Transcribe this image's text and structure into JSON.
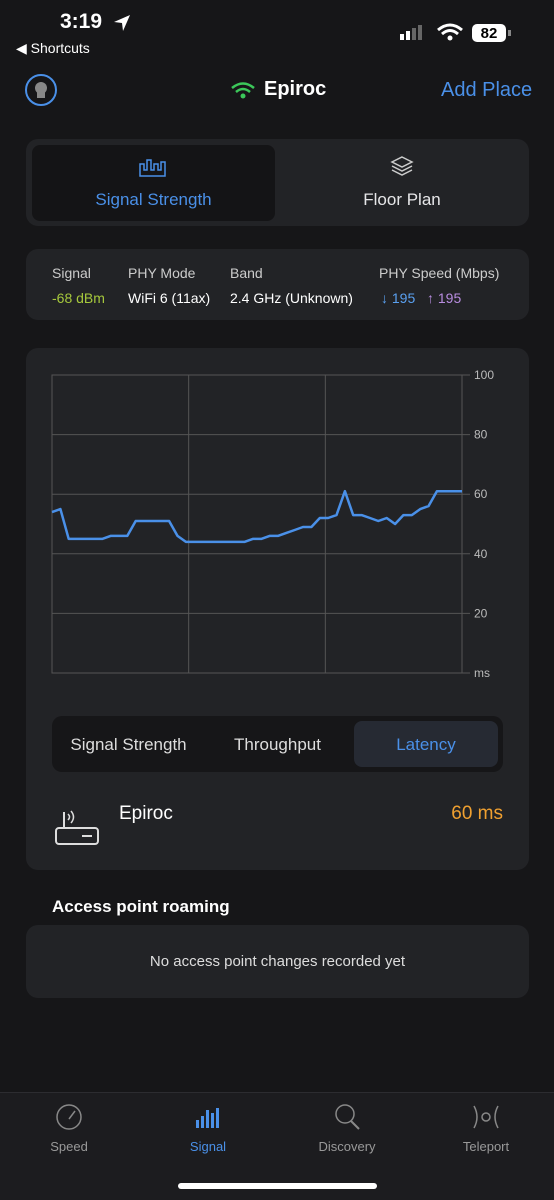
{
  "status_bar": {
    "time": "3:19",
    "back": "Shortcuts",
    "battery": "82"
  },
  "header": {
    "title": "Epiroc",
    "action": "Add Place"
  },
  "tabs": [
    "Signal Strength",
    "Floor Plan"
  ],
  "info": [
    {
      "label": "Signal",
      "value": "-68 dBm"
    },
    {
      "label": "PHY Mode",
      "value": "WiFi 6 (11ax)"
    },
    {
      "label": "Band",
      "value": "2.4 GHz (Unknown)"
    },
    {
      "label": "PHY Speed (Mbps)",
      "down": "↓ 195",
      "up": "↑ 195"
    }
  ],
  "chart_data": {
    "type": "line",
    "color": "#4a90e8",
    "ylim": [
      0,
      100
    ],
    "yticks": [
      100,
      80,
      60,
      40,
      20,
      {
        "value": 0,
        "label": "ms"
      }
    ],
    "grid": true,
    "values": [
      54,
      55,
      45,
      45,
      45,
      45,
      45,
      46,
      46,
      46,
      51,
      51,
      51,
      51,
      51,
      46,
      44,
      44,
      44,
      44,
      44,
      44,
      44,
      44,
      45,
      45,
      46,
      46,
      47,
      48,
      49,
      49,
      52,
      52,
      53,
      61,
      53,
      53,
      52,
      51,
      52,
      50,
      53,
      53,
      55,
      56,
      61,
      61,
      61,
      61
    ]
  },
  "metric_tabs": [
    "Signal Strength",
    "Throughput",
    "Latency"
  ],
  "device": {
    "name": "Epiroc",
    "value": "60 ms"
  },
  "roaming": {
    "title": "Access point roaming",
    "message": "No access point changes recorded yet"
  },
  "nav": [
    "Speed",
    "Signal",
    "Discovery",
    "Teleport"
  ]
}
